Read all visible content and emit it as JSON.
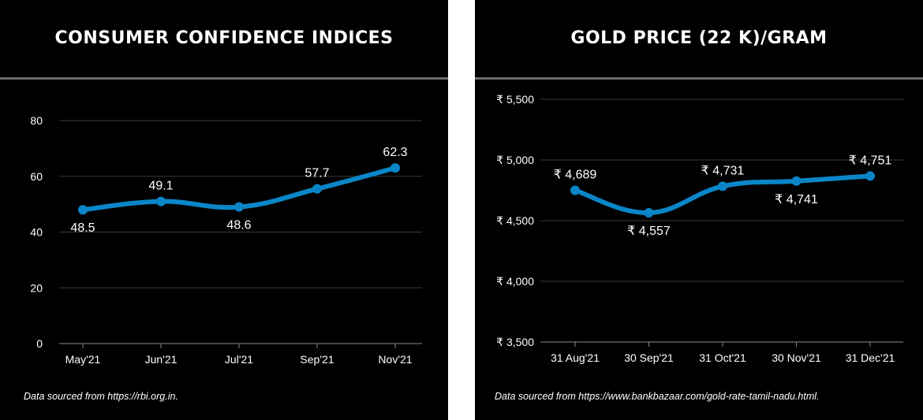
{
  "colors": {
    "background": "#000000",
    "line": "#0a86c8",
    "grid": "#3a3a3a",
    "text": "#ffffff",
    "divider": "#6b6b6b"
  },
  "left": {
    "title": "CONSUMER CONFIDENCE INDICES",
    "source": "Data sourced from https://rbi.org.in."
  },
  "right": {
    "title": "GOLD PRICE (22 K)/GRAM",
    "source": "Data sourced from https://www.bankbazaar.com/gold-rate-tamil-nadu.html."
  },
  "chart_data": [
    {
      "type": "line",
      "title": "CONSUMER CONFIDENCE INDICES",
      "categories": [
        "May'21",
        "Jun'21",
        "Jul'21",
        "Sep'21",
        "Nov'21"
      ],
      "values": [
        48.5,
        49.1,
        48.6,
        57.7,
        62.3
      ],
      "point_values": [
        48.0,
        51.0,
        49.0,
        55.5,
        63.0
      ],
      "data_labels": [
        "48.5",
        "49.1",
        "48.6",
        "57.7",
        "62.3"
      ],
      "label_positions": [
        "below",
        "above",
        "below",
        "above",
        "above"
      ],
      "ylim": [
        0,
        80
      ],
      "yticks": [
        0,
        20,
        40,
        60,
        80
      ],
      "ytick_labels": [
        "0",
        "20",
        "40",
        "60",
        "80"
      ],
      "grid": true,
      "smooth": true
    },
    {
      "type": "line",
      "title": "GOLD PRICE (22 K)/GRAM",
      "categories": [
        "31 Aug'21",
        "30 Sep'21",
        "31 Oct'21",
        "30 Nov'21",
        "31 Dec'21"
      ],
      "values": [
        4689,
        4557,
        4731,
        4741,
        4751
      ],
      "point_values": [
        4750,
        4565,
        4783,
        4826,
        4868
      ],
      "data_labels": [
        "₹ 4,689",
        "₹ 4,557",
        "₹ 4,731",
        "₹ 4,741",
        "₹ 4,751"
      ],
      "label_positions": [
        "above",
        "below",
        "above",
        "below",
        "above"
      ],
      "ylim": [
        3500,
        5500
      ],
      "yticks": [
        3500,
        4000,
        4500,
        5000,
        5500
      ],
      "ytick_labels": [
        "₹ 3,500",
        "₹ 4,000",
        "₹ 4,500",
        "₹ 5,000",
        "₹ 5,500"
      ],
      "grid": true,
      "smooth": true
    }
  ]
}
